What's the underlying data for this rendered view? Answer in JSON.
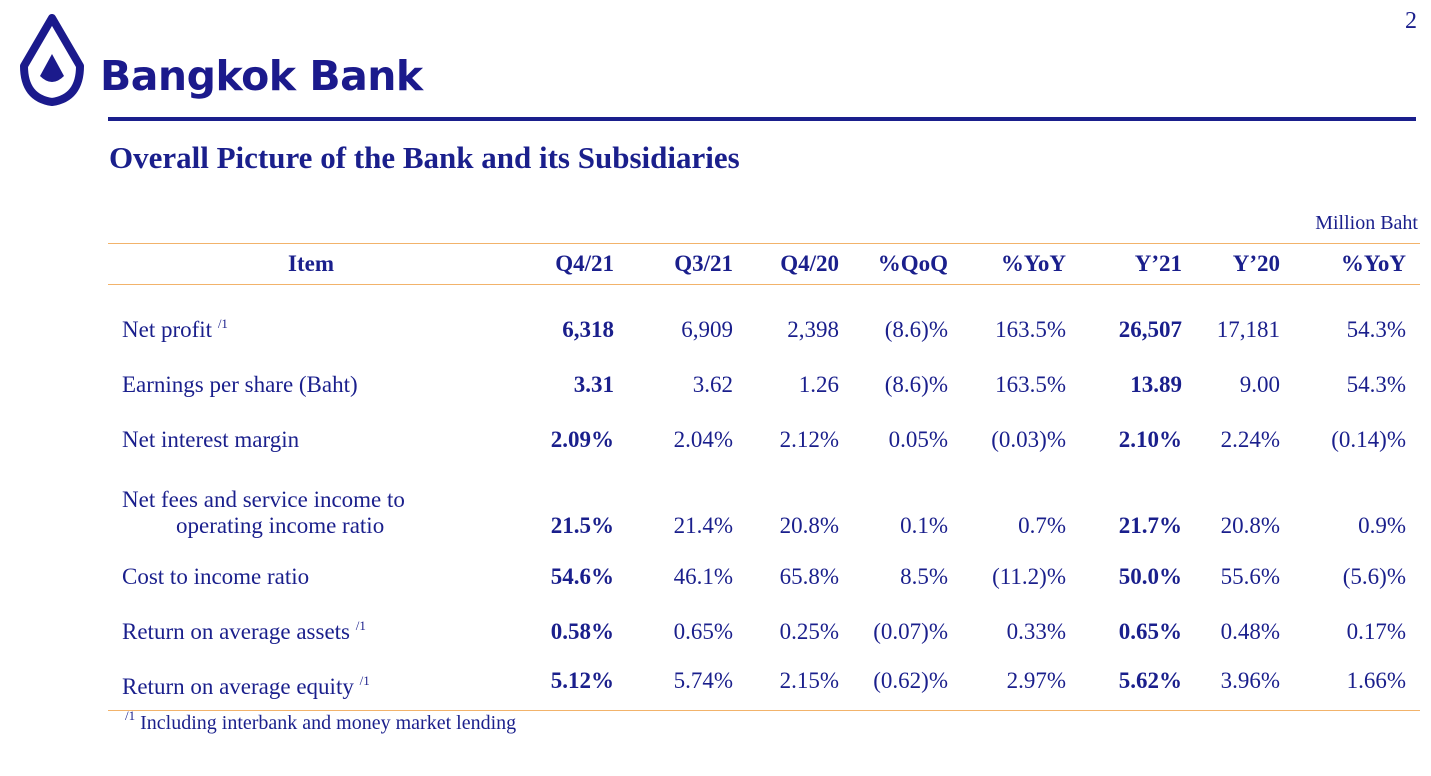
{
  "page_number": "2",
  "brand": {
    "name": "Bangkok Bank",
    "logo_icon": "bangkok-bank-lotus-logo",
    "color": "#1b1a8c"
  },
  "title": "Overall Picture of the Bank and its Subsidiaries",
  "unit": "Million Baht",
  "table": {
    "columns": [
      "Item",
      "Q4/21",
      "Q3/21",
      "Q4/20",
      "%QoQ",
      "%YoY",
      "Y’21",
      "Y’20",
      "%YoY"
    ],
    "rows": [
      {
        "label": "Net profit",
        "note": "/1",
        "values": [
          "6,318",
          "6,909",
          "2,398",
          "(8.6)%",
          "163.5%",
          "26,507",
          "17,181",
          "54.3%"
        ]
      },
      {
        "label": "Earnings per share (Baht)",
        "values": [
          "3.31",
          "3.62",
          "1.26",
          "(8.6)%",
          "163.5%",
          "13.89",
          "9.00",
          "54.3%"
        ]
      },
      {
        "label": "Net interest margin",
        "values": [
          "2.09%",
          "2.04%",
          "2.12%",
          "0.05%",
          "(0.03)%",
          "2.10%",
          "2.24%",
          "(0.14)%"
        ]
      },
      {
        "label_line1": "Net fees and service income to",
        "label_line2": "operating income ratio",
        "values": [
          "21.5%",
          "21.4%",
          "20.8%",
          "0.1%",
          "0.7%",
          "21.7%",
          "20.8%",
          "0.9%"
        ]
      },
      {
        "label": "Cost to income ratio",
        "values": [
          "54.6%",
          "46.1%",
          "65.8%",
          "8.5%",
          "(11.2)%",
          "50.0%",
          "55.6%",
          "(5.6)%"
        ]
      },
      {
        "label": "Return on average assets",
        "note": "/1",
        "values": [
          "0.58%",
          "0.65%",
          "0.25%",
          "(0.07)%",
          "0.33%",
          "0.65%",
          "0.48%",
          "0.17%"
        ]
      },
      {
        "label": "Return on average equity",
        "note": "/1",
        "values": [
          "5.12%",
          "5.74%",
          "2.15%",
          "(0.62)%",
          "2.97%",
          "5.62%",
          "3.96%",
          "1.66%"
        ]
      }
    ]
  },
  "footnote": {
    "mark": "/1",
    "text": "Including interbank and money market lending"
  },
  "colors": {
    "text": "#1a1f8c",
    "rule": "#f2b36b"
  }
}
